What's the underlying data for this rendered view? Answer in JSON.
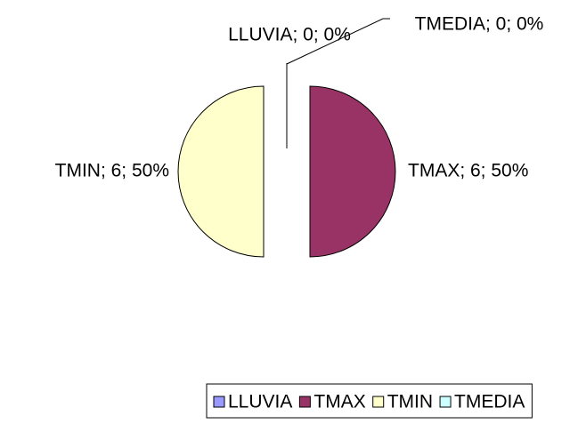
{
  "chart_data": {
    "type": "pie",
    "categories": [
      "LLUVIA",
      "TMAX",
      "TMIN",
      "TMEDIA"
    ],
    "values": [
      0,
      6,
      6,
      0
    ],
    "value_labels": [
      "LLUVIA; 0; 0%",
      "TMAX; 6; 50%",
      "TMIN; 6; 50%",
      "TMEDIA; 0; 0%"
    ],
    "colors": [
      "#9999ff",
      "#993366",
      "#ffffcc",
      "#ccffff"
    ],
    "legend": "bottom"
  }
}
